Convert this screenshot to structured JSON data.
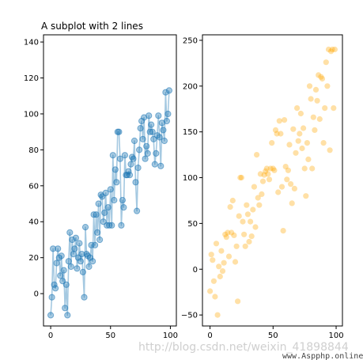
{
  "chart_data": [
    {
      "type": "line",
      "title": "A subplot with 2 lines",
      "xlabel": "",
      "ylabel": "",
      "xlim": [
        -6,
        105
      ],
      "ylim": [
        -18,
        144
      ],
      "xticks": [
        0,
        50,
        100
      ],
      "yticks": [
        0,
        20,
        40,
        60,
        80,
        100,
        120,
        140
      ],
      "color": "#1f77b4",
      "marker": "circle",
      "alpha": 0.4,
      "series": [
        {
          "x": [
            0,
            1,
            2,
            3,
            4,
            5,
            6,
            7,
            8,
            9,
            10,
            11,
            12,
            13,
            14,
            15,
            16,
            17,
            18,
            19,
            20,
            21,
            22,
            23,
            24,
            25,
            26,
            27,
            28,
            29,
            30,
            31,
            32,
            33,
            34,
            35,
            36,
            37,
            38,
            39,
            40,
            41,
            42,
            43,
            44,
            45,
            46,
            47,
            48,
            49,
            50,
            51,
            52,
            53,
            54,
            55,
            56,
            57,
            58,
            59,
            60,
            61,
            62,
            63,
            64,
            65,
            66,
            67,
            68,
            69,
            70,
            71,
            72,
            73,
            74,
            75,
            76,
            77,
            78,
            79,
            80,
            81,
            82,
            83,
            84,
            85,
            86,
            87,
            88,
            89,
            90,
            91,
            92,
            93,
            94,
            95,
            96,
            97,
            98,
            99
          ],
          "y": [
            -12,
            -2,
            25,
            5,
            3,
            17,
            25,
            20,
            10,
            21,
            7,
            13,
            -8,
            5,
            -12,
            18,
            34,
            15,
            30,
            22,
            25,
            31,
            14,
            20,
            28,
            18,
            22,
            12,
            -2,
            37,
            22,
            21,
            15,
            20,
            27,
            18,
            44,
            27,
            44,
            34,
            50,
            30,
            55,
            54,
            40,
            45,
            56,
            38,
            48,
            38,
            58,
            38,
            77,
            52,
            69,
            62,
            90,
            90,
            75,
            38,
            52,
            48,
            77,
            66,
            66,
            68,
            66,
            72,
            76,
            75,
            85,
            62,
            46,
            70,
            80,
            92,
            96,
            86,
            98,
            75,
            82,
            78,
            99,
            90,
            94,
            90,
            86,
            72,
            78,
            88,
            99,
            87,
            71,
            95,
            91,
            85,
            112,
            96,
            100,
            113
          ]
        }
      ]
    },
    {
      "type": "scatter",
      "title": "",
      "xlabel": "",
      "ylabel": "",
      "xlim": [
        -6,
        105
      ],
      "ylim": [
        -62,
        256
      ],
      "xticks": [
        0,
        50,
        100
      ],
      "yticks": [
        -50,
        0,
        50,
        100,
        150,
        200,
        250
      ],
      "color": "#ffa500",
      "alpha": 0.35,
      "series": [
        {
          "x": [
            0,
            1,
            2,
            3,
            4,
            5,
            6,
            7,
            8,
            9,
            10,
            11,
            12,
            13,
            14,
            15,
            16,
            17,
            18,
            19,
            20,
            21,
            22,
            23,
            24,
            25,
            26,
            27,
            28,
            29,
            30,
            31,
            32,
            33,
            34,
            35,
            36,
            37,
            38,
            39,
            40,
            41,
            42,
            43,
            44,
            45,
            46,
            47,
            48,
            49,
            50,
            51,
            52,
            53,
            54,
            55,
            56,
            57,
            58,
            59,
            60,
            61,
            62,
            63,
            64,
            65,
            66,
            67,
            68,
            69,
            70,
            71,
            72,
            73,
            74,
            75,
            76,
            77,
            78,
            79,
            80,
            81,
            82,
            83,
            84,
            85,
            86,
            87,
            88,
            89,
            90,
            91,
            92,
            93,
            94,
            95,
            96,
            97,
            98,
            99
          ],
          "y": [
            -24,
            16,
            10,
            -13,
            -30,
            28,
            -50,
            3,
            -8,
            20,
            -2,
            7,
            38,
            35,
            40,
            14,
            68,
            40,
            75,
            37,
            8,
            25,
            -35,
            58,
            100,
            100,
            52,
            38,
            25,
            70,
            60,
            30,
            52,
            36,
            65,
            90,
            46,
            125,
            78,
            70,
            104,
            82,
            96,
            103,
            107,
            110,
            104,
            98,
            110,
            138,
            110,
            108,
            152,
            148,
            84,
            162,
            148,
            90,
            42,
            163,
            112,
            98,
            108,
            136,
            93,
            72,
            153,
            88,
            127,
            176,
            140,
            148,
            170,
            132,
            154,
            110,
            80,
            138,
            120,
            200,
            186,
            110,
            166,
            152,
            196,
            184,
            212,
            164,
            210,
            208,
            138,
            176,
            226,
            200,
            240,
            130,
            238,
            240,
            176,
            240
          ]
        }
      ]
    }
  ],
  "watermark": {
    "text1": "http://blog.csdn.net/weixin_41898844",
    "text2": "www.Aspphp.online"
  }
}
